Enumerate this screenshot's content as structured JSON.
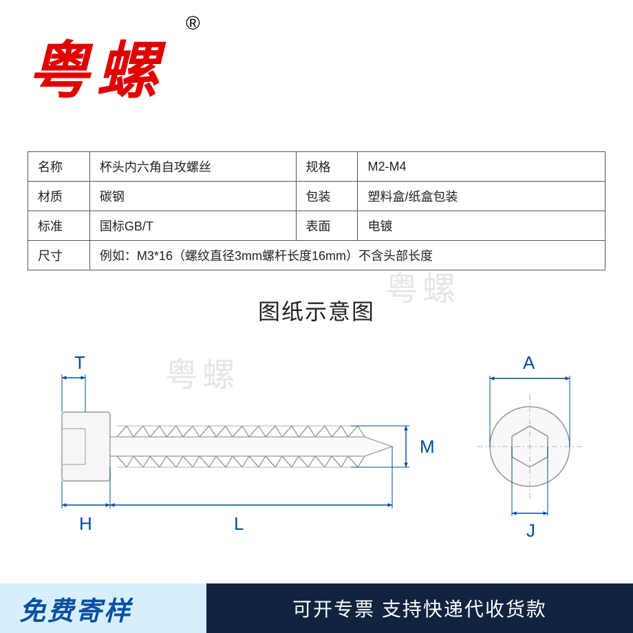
{
  "logo": {
    "text": "粤螺",
    "trademark": "®",
    "color": "#e10000"
  },
  "table": {
    "rows": [
      {
        "label_a": "名称",
        "value_a": "杯头内六角自攻螺丝",
        "label_b": "规格",
        "value_b": "M2-M4"
      },
      {
        "label_a": "材质",
        "value_a": "碳钢",
        "label_b": "包装",
        "value_b": "塑料盒/纸盒包装"
      },
      {
        "label_a": "标准",
        "value_a": "国标GB/T",
        "label_b": "表面",
        "value_b": "电镀"
      }
    ],
    "size_label": "尺寸",
    "size_value": "例如：M3*16（螺纹直径3mm螺杆长度16mm）不含头部长度"
  },
  "diagram": {
    "title": "图纸示意图",
    "watermark": "粤螺",
    "labels": {
      "T": "T",
      "H": "H",
      "L": "L",
      "M": "M",
      "A": "A",
      "J": "J"
    },
    "line_color": "#004a9c",
    "screw_color": "#999999",
    "label_color": "#004a9c"
  },
  "footer": {
    "left_text": "免费寄样",
    "left_bg": "#d7eeff",
    "left_color": "#0b4fa0",
    "left_width": 300,
    "right_text": "可开专票 支持快递代收货款",
    "right_bg": "#10243f",
    "right_color": "#ffffff"
  }
}
